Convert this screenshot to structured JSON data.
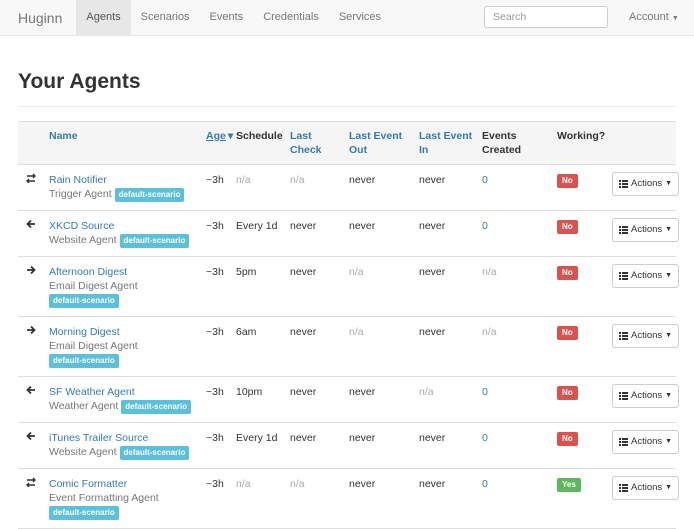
{
  "navbar": {
    "brand": "Huginn",
    "items": [
      "Agents",
      "Scenarios",
      "Events",
      "Credentials",
      "Services"
    ],
    "search_placeholder": "Search",
    "account": "Account"
  },
  "heading": "Your Agents",
  "table": {
    "headers": [
      "Name",
      "Age",
      "Schedule",
      "Last Check",
      "Last Event Out",
      "Last Event In",
      "Events Created",
      "Working?"
    ],
    "rows": [
      {
        "name": "Rain Notifier",
        "type": "Trigger Agent",
        "scenario": "default-scenario",
        "age": "~3h",
        "schedule": "n/a",
        "last_check": "n/a",
        "last_event_out": "never",
        "last_event_in": "never",
        "events_created": 0,
        "working": "No",
        "actions": "Actions"
      },
      {
        "name": "XKCD Source",
        "type": "Website Agent",
        "scenario": "default-scenario",
        "age": "~3h",
        "schedule": "Every 1d",
        "last_check": "never",
        "last_event_out": "never",
        "last_event_in": "never",
        "events_created": 0,
        "working": "No",
        "actions": "Actions"
      },
      {
        "name": "Afternoon Digest",
        "type": "Email Digest Agent",
        "scenario": "default-scenario",
        "age": "~3h",
        "schedule": "5pm",
        "last_check": "never",
        "last_event_out": "n/a",
        "last_event_in": "never",
        "events_created": "n/a",
        "working": "No",
        "actions": "Actions"
      },
      {
        "name": "Morning Digest",
        "type": "Email Digest Agent",
        "scenario": "default-scenario",
        "age": "~3h",
        "schedule": "6am",
        "last_check": "never",
        "last_event_out": "n/a",
        "last_event_in": "never",
        "events_created": "n/a",
        "working": "No",
        "actions": "Actions"
      },
      {
        "name": "SF Weather Agent",
        "type": "Weather Agent",
        "scenario": "default-scenario",
        "age": "~3h",
        "schedule": "10pm",
        "last_check": "never",
        "last_event_out": "never",
        "last_event_in": "n/a",
        "events_created": 0,
        "working": "No",
        "actions": "Actions"
      },
      {
        "name": "iTunes Trailer Source",
        "type": "Website Agent",
        "scenario": "default-scenario",
        "age": "~3h",
        "schedule": "Every 1d",
        "last_check": "never",
        "last_event_out": "never",
        "last_event_in": "never",
        "events_created": 0,
        "working": "No",
        "actions": "Actions"
      },
      {
        "name": "Comic Formatter",
        "type": "Event Formatting Agent",
        "scenario": "default-scenario",
        "age": "~3h",
        "schedule": "n/a",
        "last_check": "n/a",
        "last_event_out": "never",
        "last_event_in": "never",
        "events_created": 0,
        "working": "Yes",
        "actions": "Actions"
      }
    ]
  }
}
